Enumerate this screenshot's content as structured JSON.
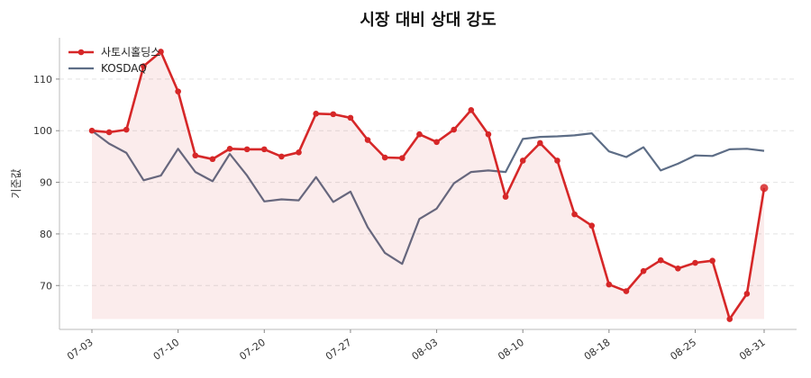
{
  "chart_data": {
    "type": "line",
    "title": "시장 대비 상대 강도",
    "xlabel": "",
    "ylabel": "기준값",
    "ylim": [
      61.5,
      118
    ],
    "yticks": [
      70,
      80,
      90,
      100,
      110
    ],
    "grid": true,
    "legend_position": "top-left",
    "xtick_labels": [
      "07-03",
      "07-10",
      "07-20",
      "07-27",
      "08-03",
      "08-10",
      "08-18",
      "08-25",
      "08-31"
    ],
    "xtick_index": [
      0,
      5,
      10,
      15,
      20,
      25,
      30,
      35,
      39
    ],
    "series": [
      {
        "name": "사토시홀딩스",
        "color": "#d62728",
        "fill": true,
        "markers": true,
        "values": [
          100.0,
          99.7,
          100.2,
          112.5,
          115.3,
          107.6,
          95.2,
          94.5,
          96.5,
          96.4,
          96.4,
          95.0,
          95.8,
          103.3,
          103.2,
          102.5,
          98.2,
          94.8,
          94.7,
          99.3,
          97.8,
          100.2,
          104.0,
          99.3,
          87.2,
          94.2,
          97.6,
          94.2,
          83.8,
          81.6,
          70.2,
          68.9,
          72.8,
          74.9,
          73.3,
          74.4,
          74.8,
          63.5,
          68.4,
          88.9
        ]
      },
      {
        "name": "KOSDAQ",
        "color": "#5d6d86",
        "fill": false,
        "markers": false,
        "values": [
          100.0,
          97.5,
          95.7,
          90.4,
          91.3,
          96.5,
          92.0,
          90.2,
          95.5,
          91.3,
          86.3,
          86.7,
          86.5,
          91.0,
          86.2,
          88.2,
          81.3,
          76.3,
          74.2,
          82.9,
          84.9,
          89.8,
          92.0,
          92.3,
          92.0,
          98.4,
          98.8,
          98.9,
          99.1,
          99.5,
          96.0,
          94.9,
          96.8,
          92.3,
          93.6,
          95.2,
          95.1,
          96.4,
          96.5,
          96.1
        ]
      }
    ]
  }
}
